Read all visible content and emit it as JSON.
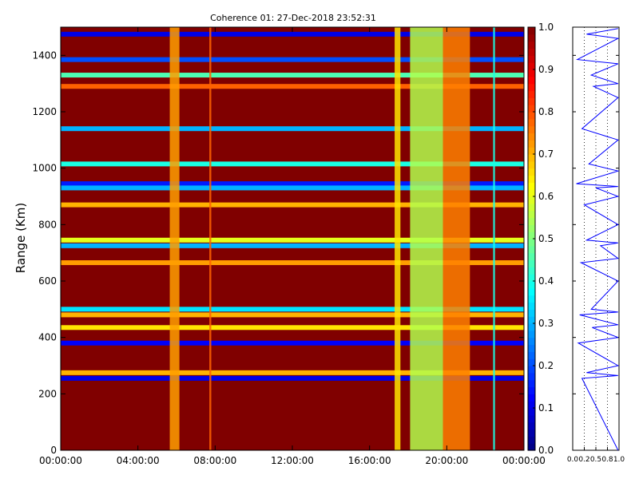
{
  "chart_data": [
    {
      "type": "heatmap",
      "title": "Coherence 01: 27-Dec-2018 23:52:31",
      "ylabel": "Range (Km)",
      "xlabel": "",
      "x_ticks": [
        "00:00:00",
        "04:00:00",
        "08:00:00",
        "12:00:00",
        "16:00:00",
        "20:00:00",
        "00:00:00"
      ],
      "x_range_hours": [
        0,
        24
      ],
      "y_ticks": [
        0,
        200,
        400,
        600,
        800,
        1000,
        1200,
        1400
      ],
      "ylim": [
        0,
        1500
      ],
      "colormap": "jet",
      "colorbar_ticks": [
        "0.0",
        "0.1",
        "0.2",
        "0.3",
        "0.4",
        "0.5",
        "0.6",
        "0.7",
        "0.8",
        "0.9",
        "1.0"
      ],
      "clim": [
        0,
        1
      ],
      "background_value": 1.0,
      "vertical_bands": [
        {
          "time_h": [
            5.65,
            6.15
          ],
          "value": 0.72
        },
        {
          "time_h": [
            7.7,
            7.8
          ],
          "value": 0.78
        },
        {
          "time_h": [
            17.3,
            17.6
          ],
          "value": 0.65
        },
        {
          "time_h": [
            18.1,
            19.8
          ],
          "value": 0.55
        },
        {
          "time_h": [
            19.8,
            21.2
          ],
          "value": 0.75
        },
        {
          "time_h": [
            22.4,
            22.5
          ],
          "value": 0.4
        }
      ],
      "horizontal_bands": [
        {
          "range_km": 1475,
          "value": 0.1
        },
        {
          "range_km": 1385,
          "value": 0.2
        },
        {
          "range_km": 1330,
          "value": 0.45
        },
        {
          "range_km": 1290,
          "value": 0.78
        },
        {
          "range_km": 1140,
          "value": 0.3
        },
        {
          "range_km": 1015,
          "value": 0.4
        },
        {
          "range_km": 945,
          "value": 0.15
        },
        {
          "range_km": 930,
          "value": 0.3
        },
        {
          "range_km": 870,
          "value": 0.7
        },
        {
          "range_km": 745,
          "value": 0.6
        },
        {
          "range_km": 725,
          "value": 0.3
        },
        {
          "range_km": 665,
          "value": 0.72
        },
        {
          "range_km": 500,
          "value": 0.35
        },
        {
          "range_km": 480,
          "value": 0.7
        },
        {
          "range_km": 435,
          "value": 0.65
        },
        {
          "range_km": 380,
          "value": 0.12
        },
        {
          "range_km": 275,
          "value": 0.7
        },
        {
          "range_km": 255,
          "value": 0.1
        }
      ]
    },
    {
      "type": "line",
      "x_ticks": [
        "0.0",
        "0.2",
        "0.5",
        "0.8",
        "1.0"
      ],
      "xlim": [
        0,
        1
      ],
      "ylim": [
        0,
        1500
      ],
      "series_color": "#0000ff",
      "x": [
        0.98,
        0.3,
        0.98,
        0.1,
        0.98,
        0.4,
        0.98,
        0.45,
        0.98,
        0.2,
        0.98,
        0.35,
        0.98,
        0.08,
        0.98,
        0.5,
        0.98,
        0.25,
        0.98,
        0.3,
        0.98,
        0.6,
        0.98,
        0.18,
        0.98,
        0.4,
        0.98,
        0.15,
        0.98,
        0.42,
        0.98,
        0.12,
        0.98,
        0.3,
        0.98,
        0.2,
        0.98
      ],
      "y": [
        1495,
        1475,
        1460,
        1385,
        1370,
        1330,
        1300,
        1290,
        1250,
        1140,
        1100,
        1015,
        990,
        945,
        935,
        930,
        900,
        870,
        800,
        745,
        735,
        725,
        680,
        665,
        600,
        500,
        490,
        480,
        445,
        435,
        400,
        380,
        300,
        275,
        265,
        255,
        0
      ]
    }
  ]
}
